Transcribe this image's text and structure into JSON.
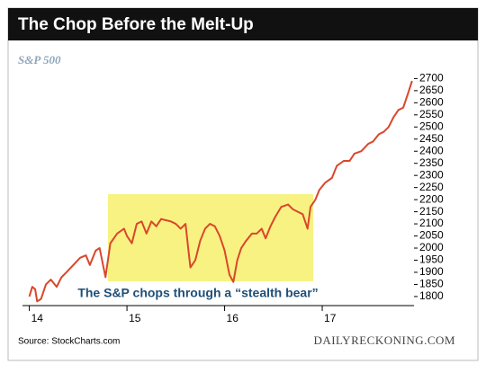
{
  "chart_data": {
    "type": "line",
    "title": "The Chop Before the Melt-Up",
    "subtitle": "S&P 500",
    "annotation": "The S&P chops through a “stealth bear”",
    "source": "Source: StockCharts.com",
    "brand": "DAILYRECKONING.COM",
    "xlim": [
      13.93,
      17.94
    ],
    "xticks": [
      14,
      15,
      16,
      17
    ],
    "ylim": [
      1770,
      2720
    ],
    "yticks": [
      1800,
      1850,
      1900,
      1950,
      2000,
      2050,
      2100,
      2150,
      2200,
      2250,
      2300,
      2350,
      2400,
      2450,
      2500,
      2550,
      2600,
      2650,
      2700
    ],
    "series": [
      {
        "name": "S&P 500",
        "color": "#d9472b",
        "x": [
          14.0,
          14.03,
          14.06,
          14.08,
          14.12,
          14.17,
          14.22,
          14.28,
          14.33,
          14.38,
          14.45,
          14.52,
          14.58,
          14.62,
          14.68,
          14.72,
          14.78,
          14.83,
          14.9,
          14.97,
          15.0,
          15.05,
          15.1,
          15.15,
          15.2,
          15.25,
          15.3,
          15.35,
          15.45,
          15.5,
          15.55,
          15.6,
          15.63,
          15.65,
          15.7,
          15.75,
          15.8,
          15.85,
          15.9,
          15.95,
          16.0,
          16.05,
          16.09,
          16.13,
          16.17,
          16.22,
          16.28,
          16.33,
          16.38,
          16.42,
          16.47,
          16.52,
          16.58,
          16.65,
          16.7,
          16.75,
          16.8,
          16.85,
          16.88,
          16.93,
          16.97,
          17.03,
          17.1,
          17.15,
          17.22,
          17.28,
          17.33,
          17.4,
          17.47,
          17.52,
          17.58,
          17.63,
          17.68,
          17.73,
          17.78,
          17.83,
          17.88,
          17.92
        ],
        "values": [
          1800,
          1840,
          1830,
          1780,
          1790,
          1850,
          1870,
          1840,
          1880,
          1900,
          1930,
          1960,
          1970,
          1930,
          1990,
          2000,
          1880,
          2020,
          2060,
          2080,
          2050,
          2020,
          2100,
          2110,
          2060,
          2110,
          2090,
          2120,
          2110,
          2100,
          2080,
          2100,
          1990,
          1920,
          1950,
          2030,
          2080,
          2100,
          2090,
          2050,
          1990,
          1890,
          1860,
          1950,
          2000,
          2030,
          2060,
          2060,
          2080,
          2040,
          2090,
          2130,
          2170,
          2180,
          2160,
          2150,
          2140,
          2080,
          2170,
          2200,
          2240,
          2270,
          2290,
          2340,
          2360,
          2360,
          2390,
          2400,
          2430,
          2440,
          2470,
          2480,
          2500,
          2540,
          2570,
          2580,
          2640,
          2690
        ]
      }
    ]
  }
}
